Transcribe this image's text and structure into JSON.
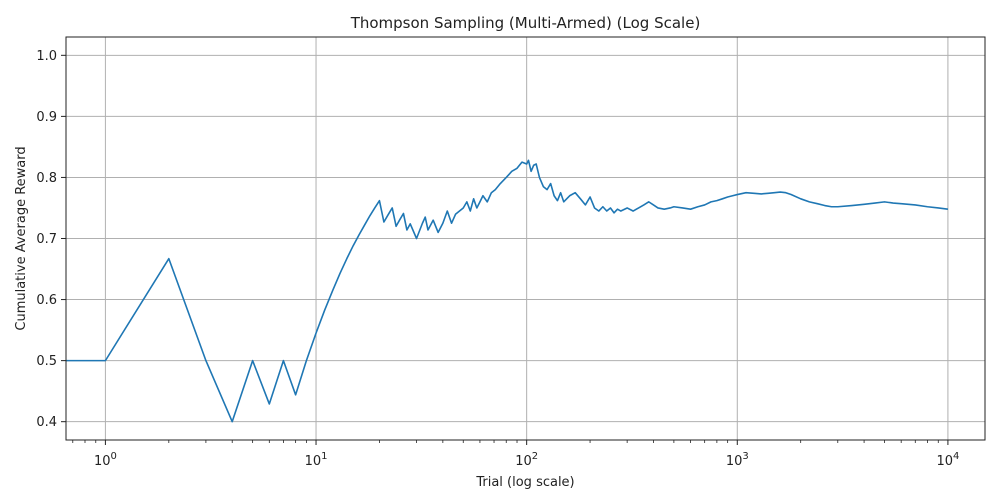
{
  "chart_data": {
    "type": "line",
    "title": "Thompson Sampling (Multi-Armed) (Log Scale)",
    "xlabel": "Trial (log scale)",
    "ylabel": "Cumulative Average Reward",
    "xscale": "log",
    "xlim": [
      0.65,
      15000
    ],
    "ylim": [
      0.37,
      1.03
    ],
    "grid": true,
    "line_color": "#1f77b4",
    "xticks": [
      {
        "value": 1,
        "base": "10",
        "exp": "0"
      },
      {
        "value": 10,
        "base": "10",
        "exp": "1"
      },
      {
        "value": 100,
        "base": "10",
        "exp": "2"
      },
      {
        "value": 1000,
        "base": "10",
        "exp": "3"
      },
      {
        "value": 10000,
        "base": "10",
        "exp": "4"
      }
    ],
    "yticks": [
      {
        "value": 0.4,
        "label": "0.4"
      },
      {
        "value": 0.5,
        "label": "0.5"
      },
      {
        "value": 0.6,
        "label": "0.6"
      },
      {
        "value": 0.7,
        "label": "0.7"
      },
      {
        "value": 0.8,
        "label": "0.8"
      },
      {
        "value": 0.9,
        "label": "0.9"
      },
      {
        "value": 1.0,
        "label": "1.0"
      }
    ],
    "series": [
      {
        "x": [
          0.65,
          1,
          2,
          3,
          4,
          5,
          6,
          7,
          8,
          9,
          10,
          11,
          12,
          13,
          14,
          15,
          16,
          17,
          18,
          19,
          20,
          21,
          22,
          23,
          24,
          25,
          26,
          27,
          28,
          30,
          32,
          33,
          34,
          36,
          38,
          40,
          42,
          44,
          46,
          48,
          50,
          52,
          54,
          56,
          58,
          60,
          62,
          65,
          68,
          71,
          75,
          80,
          85,
          90,
          95,
          100,
          102,
          105,
          108,
          111,
          115,
          120,
          125,
          130,
          135,
          140,
          145,
          150,
          160,
          170,
          180,
          190,
          200,
          210,
          220,
          230,
          240,
          250,
          260,
          270,
          280,
          300,
          320,
          340,
          360,
          380,
          400,
          420,
          450,
          480,
          500,
          550,
          600,
          650,
          700,
          750,
          800,
          850,
          900,
          950,
          1000,
          1100,
          1200,
          1300,
          1400,
          1500,
          1600,
          1700,
          1800,
          2000,
          2200,
          2400,
          2600,
          2800,
          3000,
          3500,
          4000,
          4500,
          5000,
          5500,
          6000,
          7000,
          8000,
          9000,
          10000
        ],
        "y": [
          0.5,
          0.5,
          0.667,
          0.5,
          0.4,
          0.5,
          0.429,
          0.5,
          0.444,
          0.5,
          0.545,
          0.583,
          0.615,
          0.643,
          0.667,
          0.688,
          0.706,
          0.722,
          0.737,
          0.75,
          0.762,
          0.727,
          0.739,
          0.75,
          0.72,
          0.731,
          0.741,
          0.714,
          0.724,
          0.7,
          0.725,
          0.735,
          0.714,
          0.73,
          0.71,
          0.725,
          0.745,
          0.725,
          0.74,
          0.745,
          0.75,
          0.76,
          0.745,
          0.765,
          0.75,
          0.76,
          0.77,
          0.76,
          0.775,
          0.78,
          0.79,
          0.8,
          0.81,
          0.815,
          0.825,
          0.822,
          0.828,
          0.81,
          0.82,
          0.822,
          0.8,
          0.785,
          0.78,
          0.79,
          0.77,
          0.762,
          0.775,
          0.76,
          0.77,
          0.775,
          0.765,
          0.755,
          0.768,
          0.75,
          0.745,
          0.752,
          0.745,
          0.75,
          0.742,
          0.748,
          0.745,
          0.75,
          0.745,
          0.75,
          0.755,
          0.76,
          0.755,
          0.75,
          0.748,
          0.75,
          0.752,
          0.75,
          0.748,
          0.752,
          0.755,
          0.76,
          0.762,
          0.765,
          0.768,
          0.77,
          0.772,
          0.775,
          0.774,
          0.773,
          0.774,
          0.775,
          0.776,
          0.775,
          0.772,
          0.765,
          0.76,
          0.757,
          0.754,
          0.752,
          0.752,
          0.754,
          0.756,
          0.758,
          0.76,
          0.758,
          0.757,
          0.755,
          0.752,
          0.75,
          0.748
        ]
      }
    ]
  }
}
